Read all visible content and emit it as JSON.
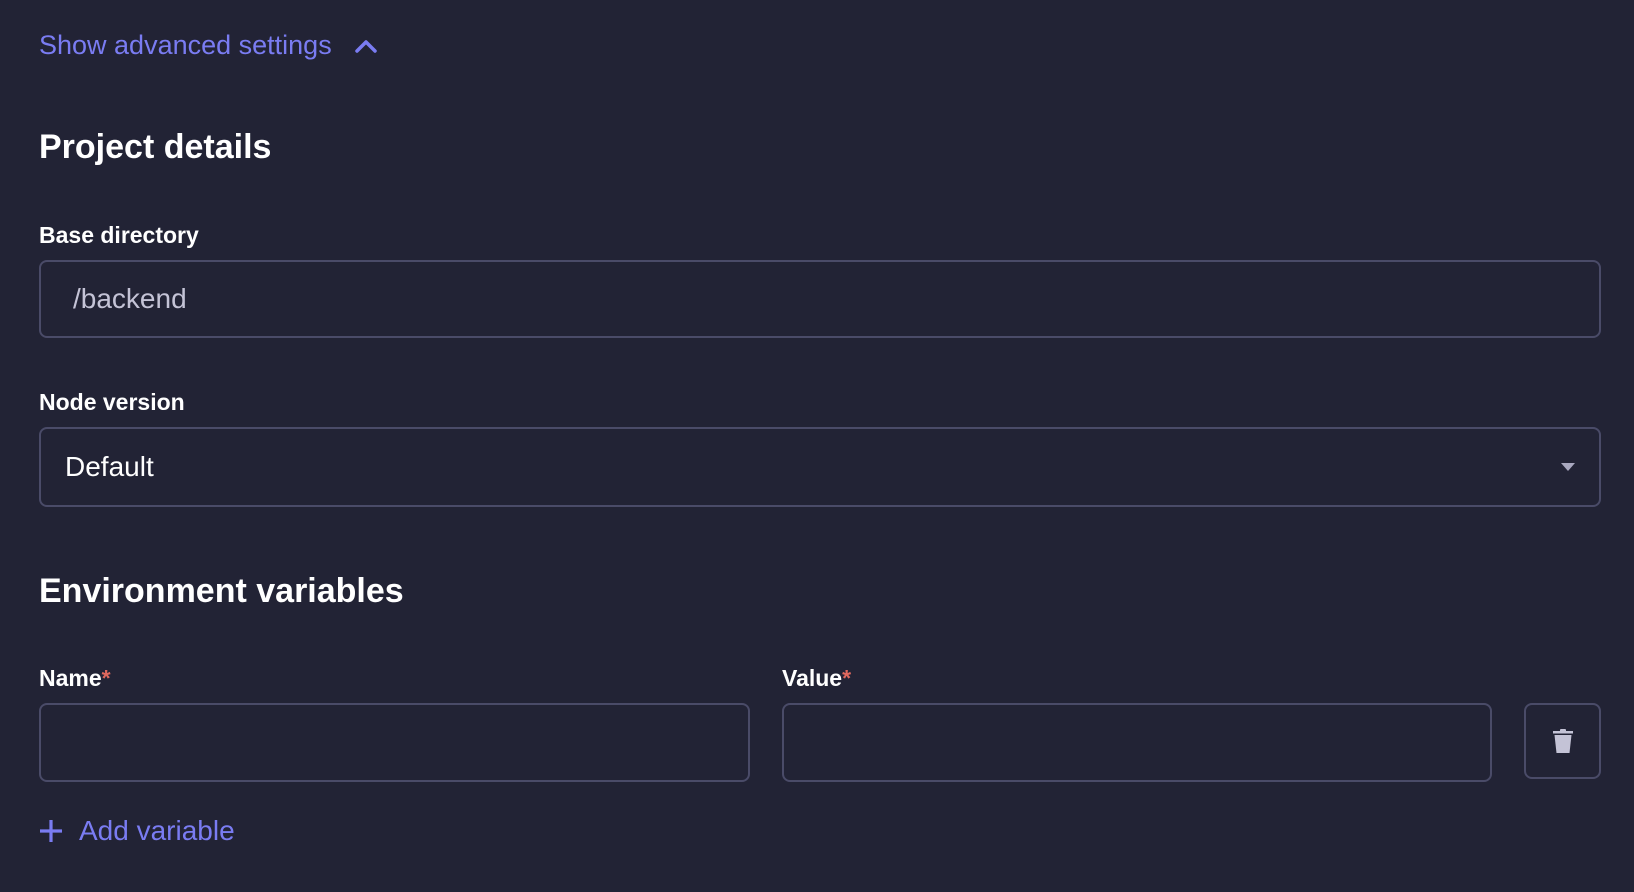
{
  "advanced_toggle": {
    "label": "Show advanced settings",
    "icon": "chevron-up-icon",
    "expanded": true
  },
  "project_details": {
    "title": "Project details",
    "base_directory": {
      "label": "Base directory",
      "value": "/backend"
    },
    "node_version": {
      "label": "Node version",
      "selected": "Default",
      "icon": "caret-down-icon"
    }
  },
  "env_vars": {
    "title": "Environment variables",
    "name_label": "Name",
    "value_label": "Value",
    "required_mark": "*",
    "rows": [
      {
        "name": "",
        "value": ""
      }
    ],
    "delete_icon": "trash-icon",
    "add_label": "Add variable"
  },
  "colors": {
    "background": "#222335",
    "accent": "#7a7cf2",
    "border": "#4a4b68",
    "required": "#e0685e"
  }
}
